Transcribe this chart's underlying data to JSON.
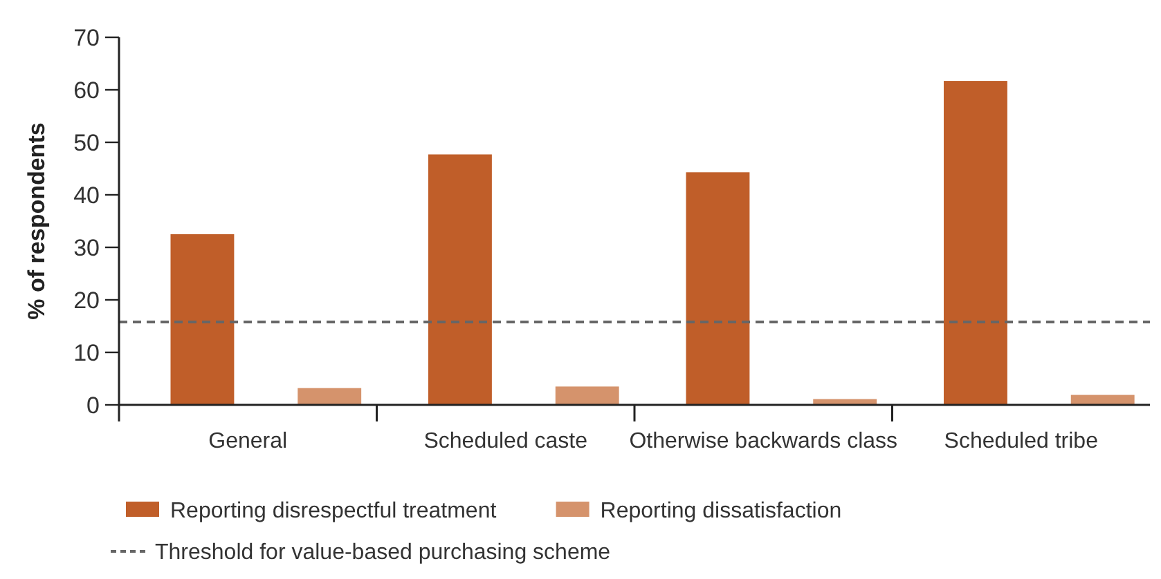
{
  "chart_data": {
    "type": "bar",
    "ylabel": "% of respondents",
    "categories": [
      "General",
      "Scheduled caste",
      "Otherwise backwards class",
      "Scheduled tribe"
    ],
    "series": [
      {
        "name": "Reporting disrespectful treatment",
        "color": "#c05e29",
        "values": [
          32.5,
          47.7,
          44.3,
          61.7
        ]
      },
      {
        "name": "Reporting dissatisfaction",
        "color": "#d5936c",
        "values": [
          3.2,
          3.5,
          1.1,
          1.9
        ]
      }
    ],
    "ylim": [
      0,
      70
    ],
    "yticks": [
      0,
      10,
      20,
      30,
      40,
      50,
      60,
      70
    ],
    "grid": false,
    "legend": "bottom",
    "ref_lines": [
      {
        "axis": "y",
        "value": 15.8,
        "label": "Threshold for value-based purchasing scheme",
        "color": "#666666",
        "line_style": "dashed"
      }
    ]
  }
}
